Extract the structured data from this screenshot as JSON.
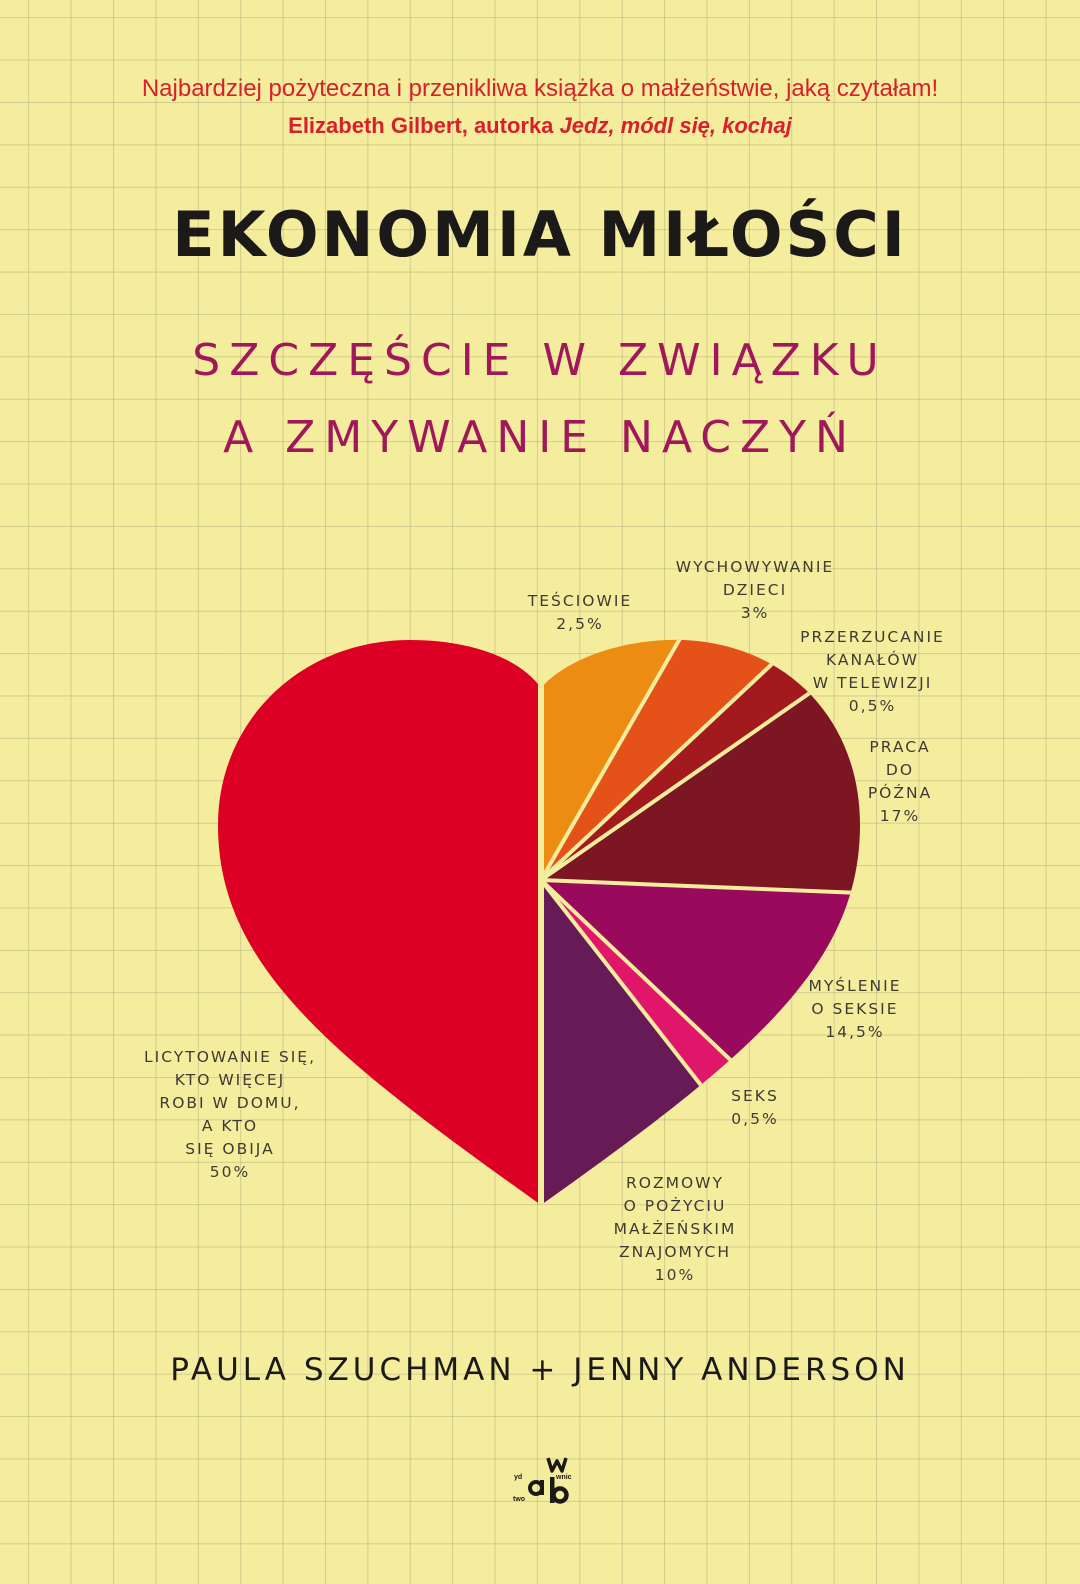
{
  "quote": {
    "text": "Najbardziej pożyteczna i przenikliwa książka o małżeństwie, jaką czytałam!",
    "attribution": "Elizabeth Gilbert, autorka ",
    "book_title": "Jedz, módl się, kochaj"
  },
  "title": "EKONOMIA MIŁOŚCI",
  "subtitle": {
    "line1": "SZCZĘŚCIE W ZWIĄZKU",
    "line2": "A ZMYWANIE NACZYŃ"
  },
  "authors": "PAULA SZUCHMAN + JENNY ANDERSON",
  "publisher_logo": "wydawnictwo wab",
  "chart_data": {
    "type": "pie",
    "shape": "heart",
    "categories": [
      "LICYTOWANIE SIĘ, KTO WIĘCEJ ROBI W DOMU, A KTO SIĘ OBIJA",
      "TEŚCIOWIE",
      "WYCHOWYWANIE DZIECI",
      "PRZERZUCANIE KANAŁÓW W TELEWIZJI",
      "PRACA DO PÓŹNA",
      "MYŚLENIE O SEKSIE",
      "SEKS",
      "ROZMOWY O POŻYCIU MAŁŻEŃSKIM ZNAJOMYCH"
    ],
    "labels": [
      "LICYTOWANIE SIĘ,\nKTO WIĘCEJ\nROBI W DOMU,\nA KTO\nSIĘ OBIJA\n50%",
      "TEŚCIOWIE\n2,5%",
      "WYCHOWYWANIE\nDZIECI\n3%",
      "PRZERZUCANIE\nKANAŁÓW\nW TELEWIZJI\n0,5%",
      "PRACA\nDO\nPÓŹNA\n17%",
      "MYŚLENIE\nO SEKSIE\n14,5%",
      "SEKS\n0,5%",
      "ROZMOWY\nO POŻYCIU\nMAŁŻEŃSKIM\nZNAJOMYCH\n10%"
    ],
    "values": [
      50,
      2.5,
      3,
      0.5,
      17,
      14.5,
      0.5,
      10
    ],
    "colors": [
      "#dc0024",
      "#ec8c12",
      "#e4521a",
      "#a31a1e",
      "#7c1622",
      "#990a5c",
      "#e0166a",
      "#661a56"
    ]
  }
}
